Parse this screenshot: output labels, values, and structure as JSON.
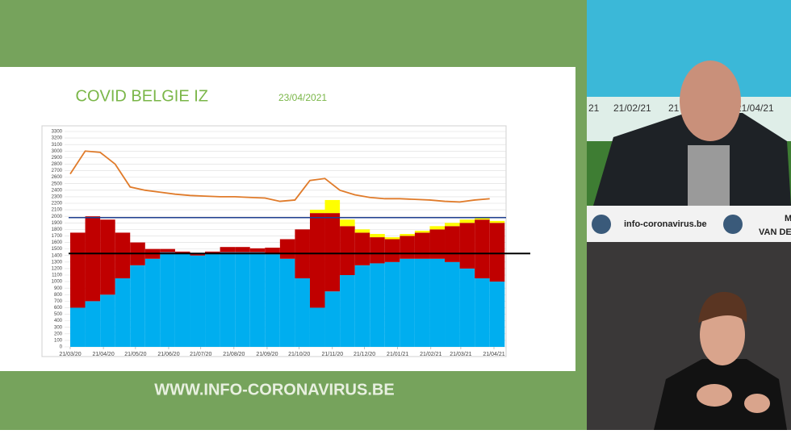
{
  "chart_data": {
    "type": "stacked_bar_line",
    "title": "COVID BELGIE IZ",
    "subtitle": "23/04/2021",
    "x": [
      "21/03/20",
      "04/04/20",
      "18/04/20",
      "02/05/20",
      "16/05/20",
      "30/05/20",
      "13/06/20",
      "27/06/20",
      "11/07/20",
      "25/07/20",
      "08/08/20",
      "22/08/20",
      "05/09/20",
      "19/09/20",
      "03/10/20",
      "17/10/20",
      "31/10/20",
      "14/11/20",
      "28/11/20",
      "12/12/20",
      "26/12/20",
      "09/01/21",
      "23/01/21",
      "06/02/21",
      "20/02/21",
      "06/03/21",
      "20/03/21",
      "03/04/21",
      "17/04/21"
    ],
    "series": [
      {
        "color": "#00aeef",
        "values": [
          600,
          700,
          800,
          1050,
          1250,
          1350,
          1450,
          1430,
          1400,
          1420,
          1450,
          1450,
          1450,
          1420,
          1350,
          1050,
          600,
          850,
          1100,
          1250,
          1280,
          1300,
          1350,
          1350,
          1350,
          1300,
          1200,
          1050,
          1000
        ]
      },
      {
        "color": "#c00000",
        "values": [
          1150,
          1300,
          1150,
          700,
          350,
          150,
          50,
          30,
          30,
          40,
          80,
          80,
          60,
          100,
          300,
          750,
          1450,
          1200,
          750,
          500,
          400,
          350,
          350,
          400,
          450,
          550,
          700,
          900,
          900
        ]
      },
      {
        "color": "#ffff00",
        "values": [
          0,
          0,
          0,
          0,
          0,
          0,
          0,
          0,
          0,
          0,
          0,
          0,
          0,
          0,
          0,
          0,
          50,
          200,
          100,
          50,
          50,
          30,
          30,
          30,
          50,
          50,
          50,
          30,
          30
        ]
      }
    ],
    "line": {
      "color": "#e07b2a",
      "values": [
        2650,
        3000,
        2980,
        2800,
        2450,
        2400,
        2370,
        2340,
        2320,
        2310,
        2300,
        2300,
        2290,
        2280,
        2230,
        2250,
        2550,
        2580,
        2400,
        2330,
        2290,
        2270,
        2270,
        2260,
        2250,
        2230,
        2220,
        2250,
        2270
      ]
    },
    "reference_lines": [
      {
        "value": 1980,
        "color": "#1f3f8f"
      },
      {
        "value": 1430,
        "color": "#000000"
      }
    ],
    "xlim": [
      "21/03/20",
      "21/04/21"
    ],
    "xticks": [
      "21/03/20",
      "21/04/20",
      "21/05/20",
      "21/06/20",
      "21/07/20",
      "21/08/20",
      "21/09/20",
      "21/10/20",
      "21/11/20",
      "21/12/20",
      "21/01/21",
      "21/02/21",
      "21/03/21",
      "21/04/21"
    ],
    "ylim": [
      0,
      3300
    ],
    "yticks": [
      0,
      100,
      200,
      300,
      400,
      500,
      600,
      700,
      800,
      900,
      1000,
      1100,
      1200,
      1300,
      1400,
      1500,
      1600,
      1700,
      1800,
      1900,
      2000,
      2100,
      2200,
      2300,
      2400,
      2500,
      2600,
      2700,
      2800,
      2900,
      3000,
      3100,
      3200,
      3300
    ],
    "grid": true
  },
  "banner": "WWW.INFO-CORONAVIRUS.BE",
  "background_screen": {
    "labels": [
      "21",
      "21/02/21",
      "21",
      "21/04/21"
    ]
  },
  "desk": {
    "sign": "info-coronavirus.be",
    "name_card": [
      "M",
      "VAN DE"
    ]
  }
}
